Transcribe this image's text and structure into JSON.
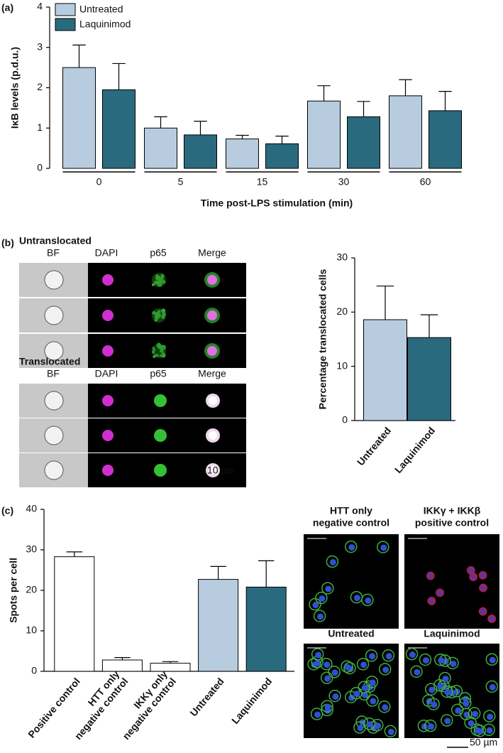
{
  "figure": {
    "panel_labels": [
      "(a)",
      "(b)",
      "(c)"
    ],
    "imaging_b": {
      "groups": [
        {
          "title": "Untranslocated",
          "channels": [
            "BF",
            "DAPI",
            "p65",
            "Merge"
          ]
        },
        {
          "title": "Translocated",
          "channels": [
            "BF",
            "DAPI",
            "p65",
            "Merge"
          ]
        }
      ],
      "scale": "10 µm"
    },
    "imaging_c": {
      "tiles": [
        [
          "HTT only",
          "negative control"
        ],
        [
          "IKKγ + IKKβ",
          "positive control"
        ],
        [
          "Untreated"
        ],
        [
          "Laquinimod"
        ]
      ],
      "scale": "50 µm"
    }
  },
  "chart_data": [
    {
      "type": "bar",
      "categories": [
        "0",
        "5",
        "15",
        "30",
        "60"
      ],
      "series": [
        {
          "name": "Untreated",
          "color": "#b8cce0",
          "values": [
            2.5,
            1.0,
            0.73,
            1.67,
            1.8
          ],
          "errors": [
            0.56,
            0.28,
            0.09,
            0.38,
            0.4
          ]
        },
        {
          "name": "Laquinimod",
          "color": "#2a6a7e",
          "values": [
            1.95,
            0.83,
            0.61,
            1.28,
            1.43
          ],
          "errors": [
            0.65,
            0.34,
            0.19,
            0.38,
            0.48
          ]
        }
      ],
      "ylim": [
        0,
        4
      ],
      "yticks": [
        0,
        1,
        2,
        3,
        4
      ],
      "ylabel": "IκB levels (p.d.u.)",
      "xlabel": "Time post-LPS stimulation (min)",
      "legend": "upper left"
    },
    {
      "type": "bar",
      "categories": [
        "Untreated",
        "Laquinimod"
      ],
      "values": [
        18.6,
        15.3
      ],
      "errors": [
        6.2,
        4.2
      ],
      "colors": [
        "#b8cce0",
        "#2a6a7e"
      ],
      "ylim": [
        0,
        30
      ],
      "yticks": [
        0,
        10,
        20,
        30
      ],
      "ylabel": "Percentage translocated cells"
    },
    {
      "type": "bar",
      "categories": [
        [
          "Positive control"
        ],
        [
          "HTT only",
          "negative control"
        ],
        [
          "IKKγ only",
          "negative control"
        ],
        [
          "Untreated"
        ],
        [
          "Laquinimod"
        ]
      ],
      "values": [
        28.3,
        2.8,
        2.0,
        22.7,
        20.8
      ],
      "errors": [
        1.2,
        0.6,
        0.4,
        3.2,
        6.5
      ],
      "colors": [
        "#ffffff",
        "#ffffff",
        "#ffffff",
        "#b8cce0",
        "#2a6a7e"
      ],
      "ylim": [
        0,
        40
      ],
      "yticks": [
        0,
        10,
        20,
        30,
        40
      ],
      "ylabel": "Spots per cell"
    }
  ]
}
